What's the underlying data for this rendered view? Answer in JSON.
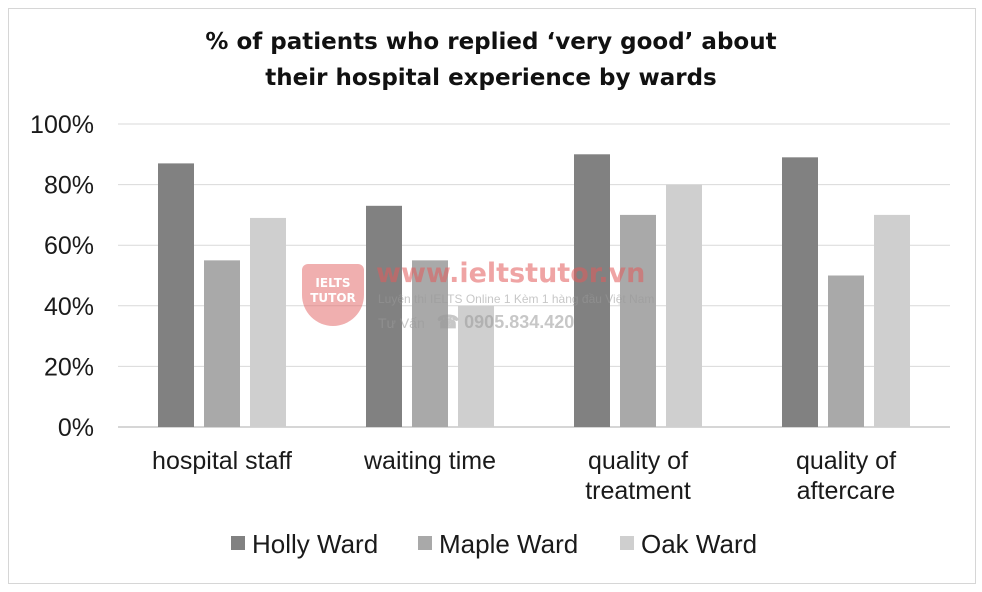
{
  "chart_data": {
    "type": "bar",
    "title_lines": [
      "% of patients who replied ‘very good’ about",
      "their hospital experience by wards"
    ],
    "categories": [
      [
        "hospital staff"
      ],
      [
        "waiting time"
      ],
      [
        "quality of",
        "treatment"
      ],
      [
        "quality of",
        "aftercare"
      ]
    ],
    "series": [
      {
        "name": "Holly Ward",
        "color": "#818181",
        "values": [
          87,
          73,
          90,
          89
        ]
      },
      {
        "name": "Maple Ward",
        "color": "#a9a9a9",
        "values": [
          55,
          55,
          70,
          50
        ]
      },
      {
        "name": "Oak Ward",
        "color": "#cfcfcf",
        "values": [
          69,
          40,
          80,
          70
        ]
      }
    ],
    "yticks": [
      "0%",
      "20%",
      "40%",
      "60%",
      "80%",
      "100%"
    ],
    "ylim": [
      0,
      100
    ],
    "grid": true,
    "legend_position": "bottom"
  },
  "watermark": {
    "logo_text": "IELTS TUTOR",
    "url": "www.ieltstutor.vn",
    "tagline": "Luyện thi IELTS Online 1 Kèm 1 hàng đầu Việt Nam",
    "contact_label": "Tư Vấn",
    "phone": "☎ 0905.834.420"
  }
}
